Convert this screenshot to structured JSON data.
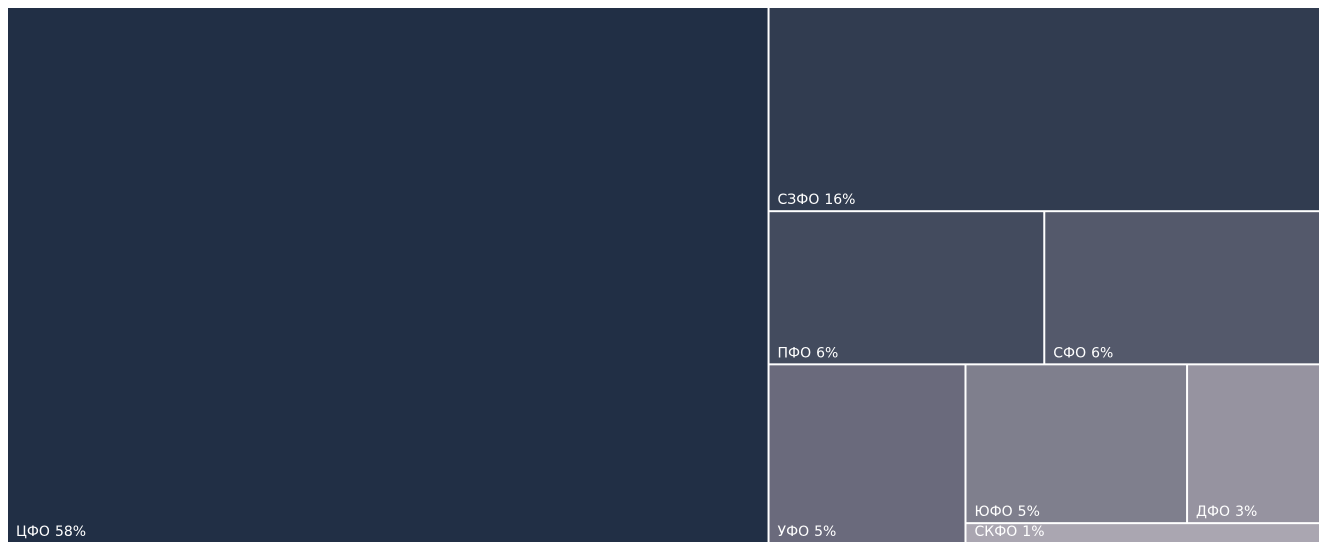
{
  "chart_data": {
    "type": "treemap",
    "categories": [
      "ЦФО",
      "СЗФО",
      "ПФО",
      "СФО",
      "УФО",
      "ЮФО",
      "ДФО",
      "СКФО"
    ],
    "values": [
      58,
      16,
      6,
      6,
      5,
      5,
      3,
      1
    ],
    "value_labels": [
      "58%",
      "16%",
      "6%",
      "6%",
      "5%",
      "5%",
      "3%",
      "1%"
    ],
    "colors": [
      "#212f45",
      "#313c50",
      "#434b5e",
      "#54596b",
      "#6a6a7c",
      "#7f7f8d",
      "#9693a0",
      "#aaa6b1"
    ]
  }
}
